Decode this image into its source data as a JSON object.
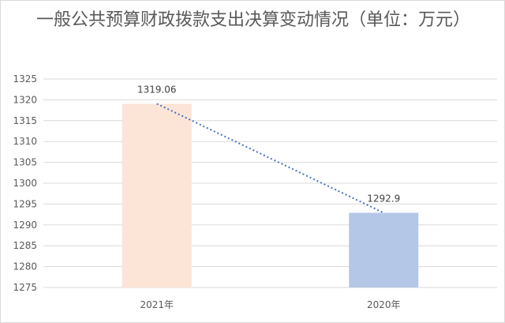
{
  "chart_data": {
    "type": "bar",
    "title": "一般公共预算财政拨款支出决算变动情况（单位：万元）",
    "categories": [
      "2021年",
      "2020年"
    ],
    "values": [
      1319.06,
      1292.9
    ],
    "value_labels": [
      "1319.06",
      "1292.9"
    ],
    "ylim": [
      1275,
      1325
    ],
    "yticks": [
      1275,
      1280,
      1285,
      1290,
      1295,
      1300,
      1305,
      1310,
      1315,
      1320,
      1325
    ],
    "trendline": "dotted-linear",
    "grid": true,
    "legend": "none",
    "colors": {
      "bars": [
        "#fce4d6",
        "#b4c7e7"
      ],
      "trendline": "#4472c4",
      "gridline": "#d9d9d9",
      "axis_text": "#595959"
    }
  }
}
